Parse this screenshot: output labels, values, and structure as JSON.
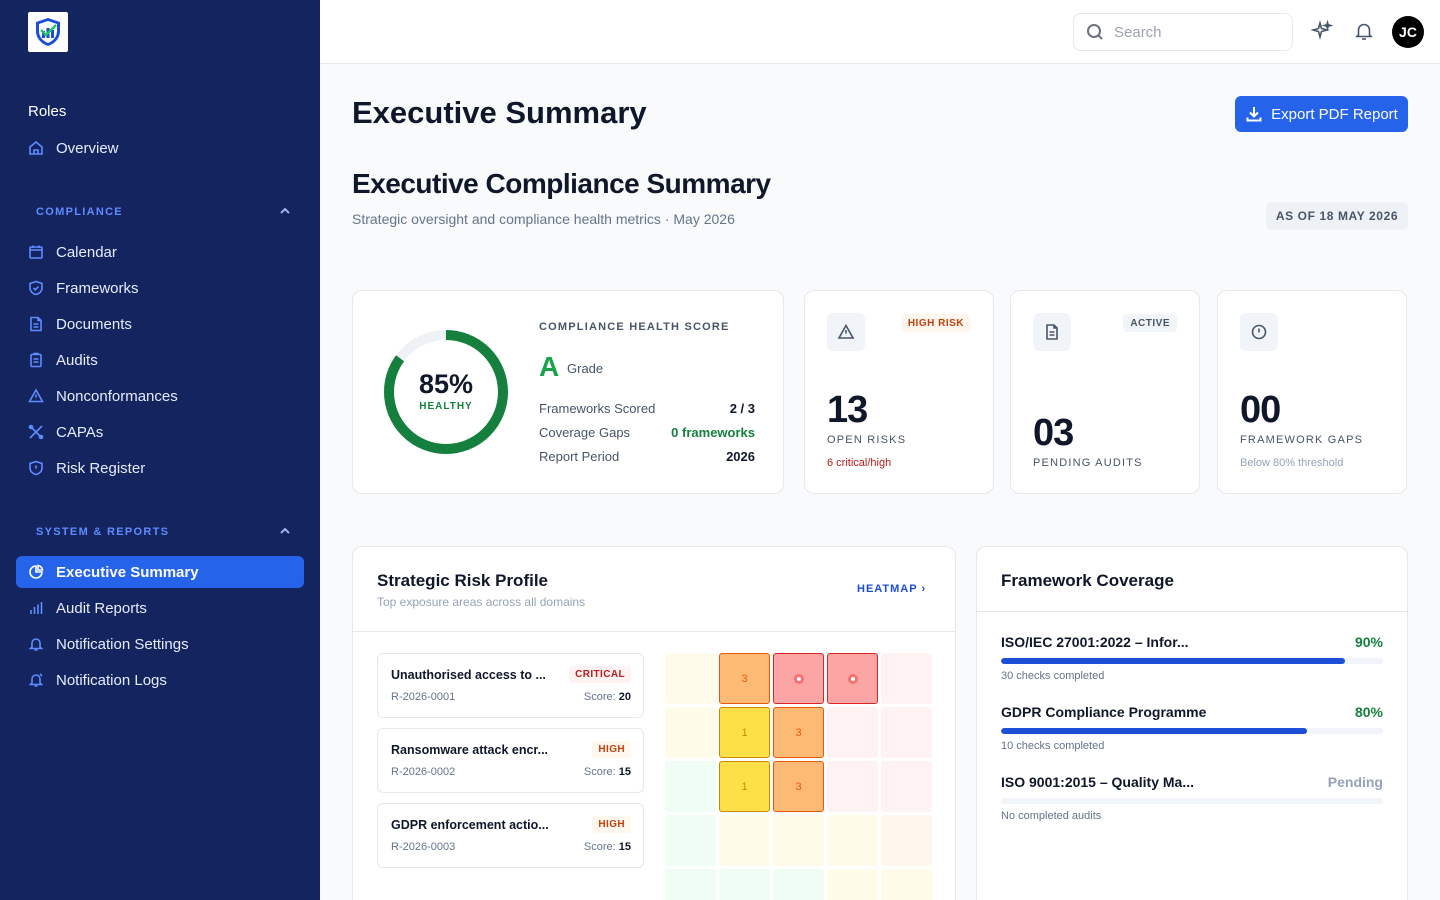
{
  "sidebar": {
    "roles": "Roles",
    "overview": "Overview",
    "compliance_label": "COMPLIANCE",
    "compliance_items": [
      {
        "label": "Calendar",
        "icon": "calendar-icon"
      },
      {
        "label": "Frameworks",
        "icon": "shield-check-icon"
      },
      {
        "label": "Documents",
        "icon": "document-icon"
      },
      {
        "label": "Audits",
        "icon": "clipboard-icon"
      },
      {
        "label": "Nonconformances",
        "icon": "warning-icon"
      },
      {
        "label": "CAPAs",
        "icon": "tools-icon"
      },
      {
        "label": "Risk Register",
        "icon": "shield-alert-icon"
      }
    ],
    "system_label": "SYSTEM & REPORTS",
    "system_items": [
      {
        "label": "Executive Summary",
        "icon": "pie-chart-icon",
        "active": true
      },
      {
        "label": "Audit Reports",
        "icon": "bar-chart-icon"
      },
      {
        "label": "Notification Settings",
        "icon": "bell-icon"
      },
      {
        "label": "Notification Logs",
        "icon": "bell-log-icon"
      }
    ]
  },
  "topbar": {
    "search_placeholder": "Search",
    "avatar_initials": "JC"
  },
  "main": {
    "page_title": "Executive Summary",
    "export_label": "Export PDF Report",
    "summary_title": "Executive Compliance Summary",
    "summary_subtitle": "Strategic oversight and compliance health metrics · May 2026",
    "as_of": "AS OF 18 MAY 2026"
  },
  "health": {
    "percent_value": 85,
    "percent_text": "85%",
    "status": "HEALTHY",
    "label": "COMPLIANCE HEALTH SCORE",
    "grade": "A",
    "grade_word": "Grade",
    "rows": [
      {
        "label": "Frameworks Scored",
        "value": "2 / 3"
      },
      {
        "label": "Coverage Gaps",
        "value": "0 frameworks"
      },
      {
        "label": "Report Period",
        "value": "2026"
      }
    ],
    "color_ring": "#15803d",
    "color_track": "#eef2f7"
  },
  "stats": [
    {
      "icon": "warning-icon",
      "badge": "HIGH RISK",
      "number": "13",
      "label": "OPEN RISKS",
      "sub": "6 critical/high",
      "sub_color": "#b91c1c"
    },
    {
      "icon": "document-icon",
      "badge": "ACTIVE",
      "number": "03",
      "label": "PENDING AUDITS",
      "sub": "",
      "sub_color": "#94a3b8"
    },
    {
      "icon": "info-circle-icon",
      "badge": "",
      "number": "00",
      "label": "FRAMEWORK GAPS",
      "sub": "Below 80% threshold",
      "sub_color": "#94a3b8"
    }
  ],
  "risk_profile": {
    "title": "Strategic Risk Profile",
    "subtitle": "Top exposure areas across all domains",
    "heatmap_link": "HEATMAP",
    "items": [
      {
        "title": "Unauthorised access to ...",
        "badge": "CRITICAL",
        "severity": "critical",
        "id": "R-2026-0001",
        "score_label": "Score:",
        "score": "20"
      },
      {
        "title": "Ransomware attack encr...",
        "badge": "HIGH",
        "severity": "high",
        "id": "R-2026-0002",
        "score_label": "Score:",
        "score": "15"
      },
      {
        "title": "GDPR enforcement actio...",
        "badge": "HIGH",
        "severity": "high",
        "id": "R-2026-0003",
        "score_label": "Score:",
        "score": "15"
      }
    ],
    "heatmap_grid": [
      [
        "",
        "3",
        "dot",
        "dot",
        ""
      ],
      [
        "",
        "1",
        "3",
        "",
        ""
      ],
      [
        "",
        "1",
        "3",
        "",
        ""
      ],
      [
        "",
        "",
        "",
        "",
        ""
      ],
      [
        "",
        "",
        "",
        "",
        ""
      ]
    ]
  },
  "coverage": {
    "title": "Framework Coverage",
    "items": [
      {
        "name": "ISO/IEC 27001:2022 – Infor...",
        "pct_text": "90%",
        "pct": 90,
        "note": "30 checks completed",
        "color": "#15803d"
      },
      {
        "name": "GDPR Compliance Programme",
        "pct_text": "80%",
        "pct": 80,
        "note": "10 checks completed",
        "color": "#15803d"
      },
      {
        "name": "ISO 9001:2015 – Quality Ma...",
        "pct_text": "Pending",
        "pct": 0,
        "note": "No completed audits",
        "color": "#94a3b8"
      }
    ]
  }
}
